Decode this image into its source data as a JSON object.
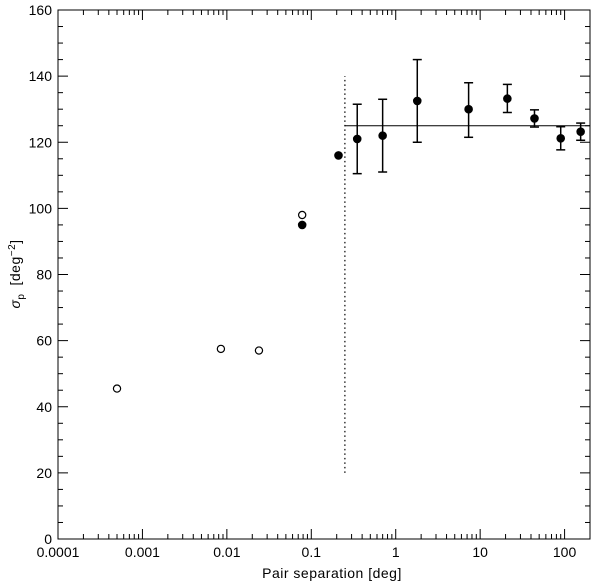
{
  "chart_data": {
    "type": "scatter",
    "xscale": "log",
    "xlim": [
      0.0001,
      200
    ],
    "ylim": [
      0,
      160
    ],
    "xlabel": "Pair separation  [deg]",
    "ylabel_symbol": "σ",
    "ylabel_subscript": "p",
    "ylabel_unit_prefix": "[deg",
    "ylabel_unit_exp": "−2",
    "ylabel_unit_suffix": "]",
    "xticks": [
      {
        "value": 0.0001,
        "label": "0.0001"
      },
      {
        "value": 0.001,
        "label": "0.001"
      },
      {
        "value": 0.01,
        "label": "0.01"
      },
      {
        "value": 0.1,
        "label": "0.1"
      },
      {
        "value": 1,
        "label": "1"
      },
      {
        "value": 10,
        "label": "10"
      },
      {
        "value": 100,
        "label": "100"
      }
    ],
    "yticks": [
      {
        "value": 0,
        "label": "0"
      },
      {
        "value": 20,
        "label": "20"
      },
      {
        "value": 40,
        "label": "40"
      },
      {
        "value": 60,
        "label": "60"
      },
      {
        "value": 80,
        "label": "80"
      },
      {
        "value": 100,
        "label": "100"
      },
      {
        "value": 120,
        "label": "120"
      },
      {
        "value": 140,
        "label": "140"
      },
      {
        "value": 160,
        "label": "160"
      }
    ],
    "series": [
      {
        "marker": "open-circle",
        "points": [
          {
            "x": 0.0005,
            "y": 45.5
          },
          {
            "x": 0.0085,
            "y": 57.5
          },
          {
            "x": 0.024,
            "y": 57
          },
          {
            "x": 0.078,
            "y": 98
          }
        ]
      },
      {
        "marker": "filled-circle",
        "points": [
          {
            "x": 0.078,
            "y": 95
          },
          {
            "x": 0.21,
            "y": 116
          }
        ]
      },
      {
        "marker": "filled-circle-errorbar",
        "points": [
          {
            "x": 0.35,
            "y": 121,
            "ylo": 110.5,
            "yhi": 131.5
          },
          {
            "x": 0.7,
            "y": 122,
            "ylo": 111,
            "yhi": 133
          },
          {
            "x": 1.8,
            "y": 132.5,
            "ylo": 120,
            "yhi": 145
          },
          {
            "x": 7.3,
            "y": 130,
            "ylo": 121.5,
            "yhi": 138
          },
          {
            "x": 21,
            "y": 133.2,
            "ylo": 129,
            "yhi": 137.5
          },
          {
            "x": 44,
            "y": 127.2,
            "ylo": 124.6,
            "yhi": 129.8
          },
          {
            "x": 90,
            "y": 121.2,
            "ylo": 117.7,
            "yhi": 124.7
          },
          {
            "x": 155,
            "y": 123.2,
            "ylo": 120.6,
            "yhi": 125.8
          }
        ]
      }
    ],
    "reference_lines": [
      {
        "type": "horizontal",
        "y": 125,
        "x_from": 0.25,
        "x_to": 200,
        "style": "solid"
      },
      {
        "type": "vertical",
        "x": 0.25,
        "y_from": 20,
        "y_to": 140,
        "style": "dotted"
      }
    ],
    "grid": false,
    "legend": "none"
  }
}
